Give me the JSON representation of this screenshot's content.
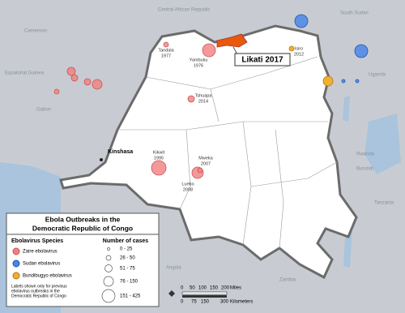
{
  "map": {
    "countries": [
      "Central African Republic",
      "South Sudan",
      "Cameroon",
      "Equatorial Guinea",
      "Gabon",
      "Uganda",
      "Rwanda",
      "Burundi",
      "Tanzania",
      "Angola",
      "Zambia"
    ],
    "capital": "Kinshasa",
    "outbreaks": [
      {
        "name": "Tandala",
        "year": "1977"
      },
      {
        "name": "Yambuku",
        "year": "1976"
      },
      {
        "name": "Isiro",
        "year": "2012"
      },
      {
        "name": "Tshuapa",
        "year": "2014"
      },
      {
        "name": "Kikwit",
        "year": "1995"
      },
      {
        "name": "Mweka",
        "year": "2007"
      },
      {
        "name": "Luebo",
        "year": "2008"
      }
    ],
    "highlight": "Likati 2017"
  },
  "legend": {
    "title": "Ebola Outbreaks in the Democratic Republic of Congo",
    "species_heading": "Ebolavirus Species",
    "species": [
      "Zaire ebolavirus",
      "Sudan ebolavirus",
      "Bundibugyo ebolavirus"
    ],
    "cases_heading": "Number of cases",
    "cases": [
      "0 - 25",
      "26 - 50",
      "51 - 75",
      "76 - 150",
      "151 - 425"
    ],
    "note": [
      "Labels shown only for previous",
      "ebolavirus outbreaks in the",
      "Democratic Republic of Congo"
    ]
  },
  "scale": {
    "miles": [
      "0",
      "50",
      "100",
      "150",
      "200",
      "Miles"
    ],
    "km": [
      "0",
      "75",
      "150",
      "300",
      "Kilometers"
    ]
  }
}
